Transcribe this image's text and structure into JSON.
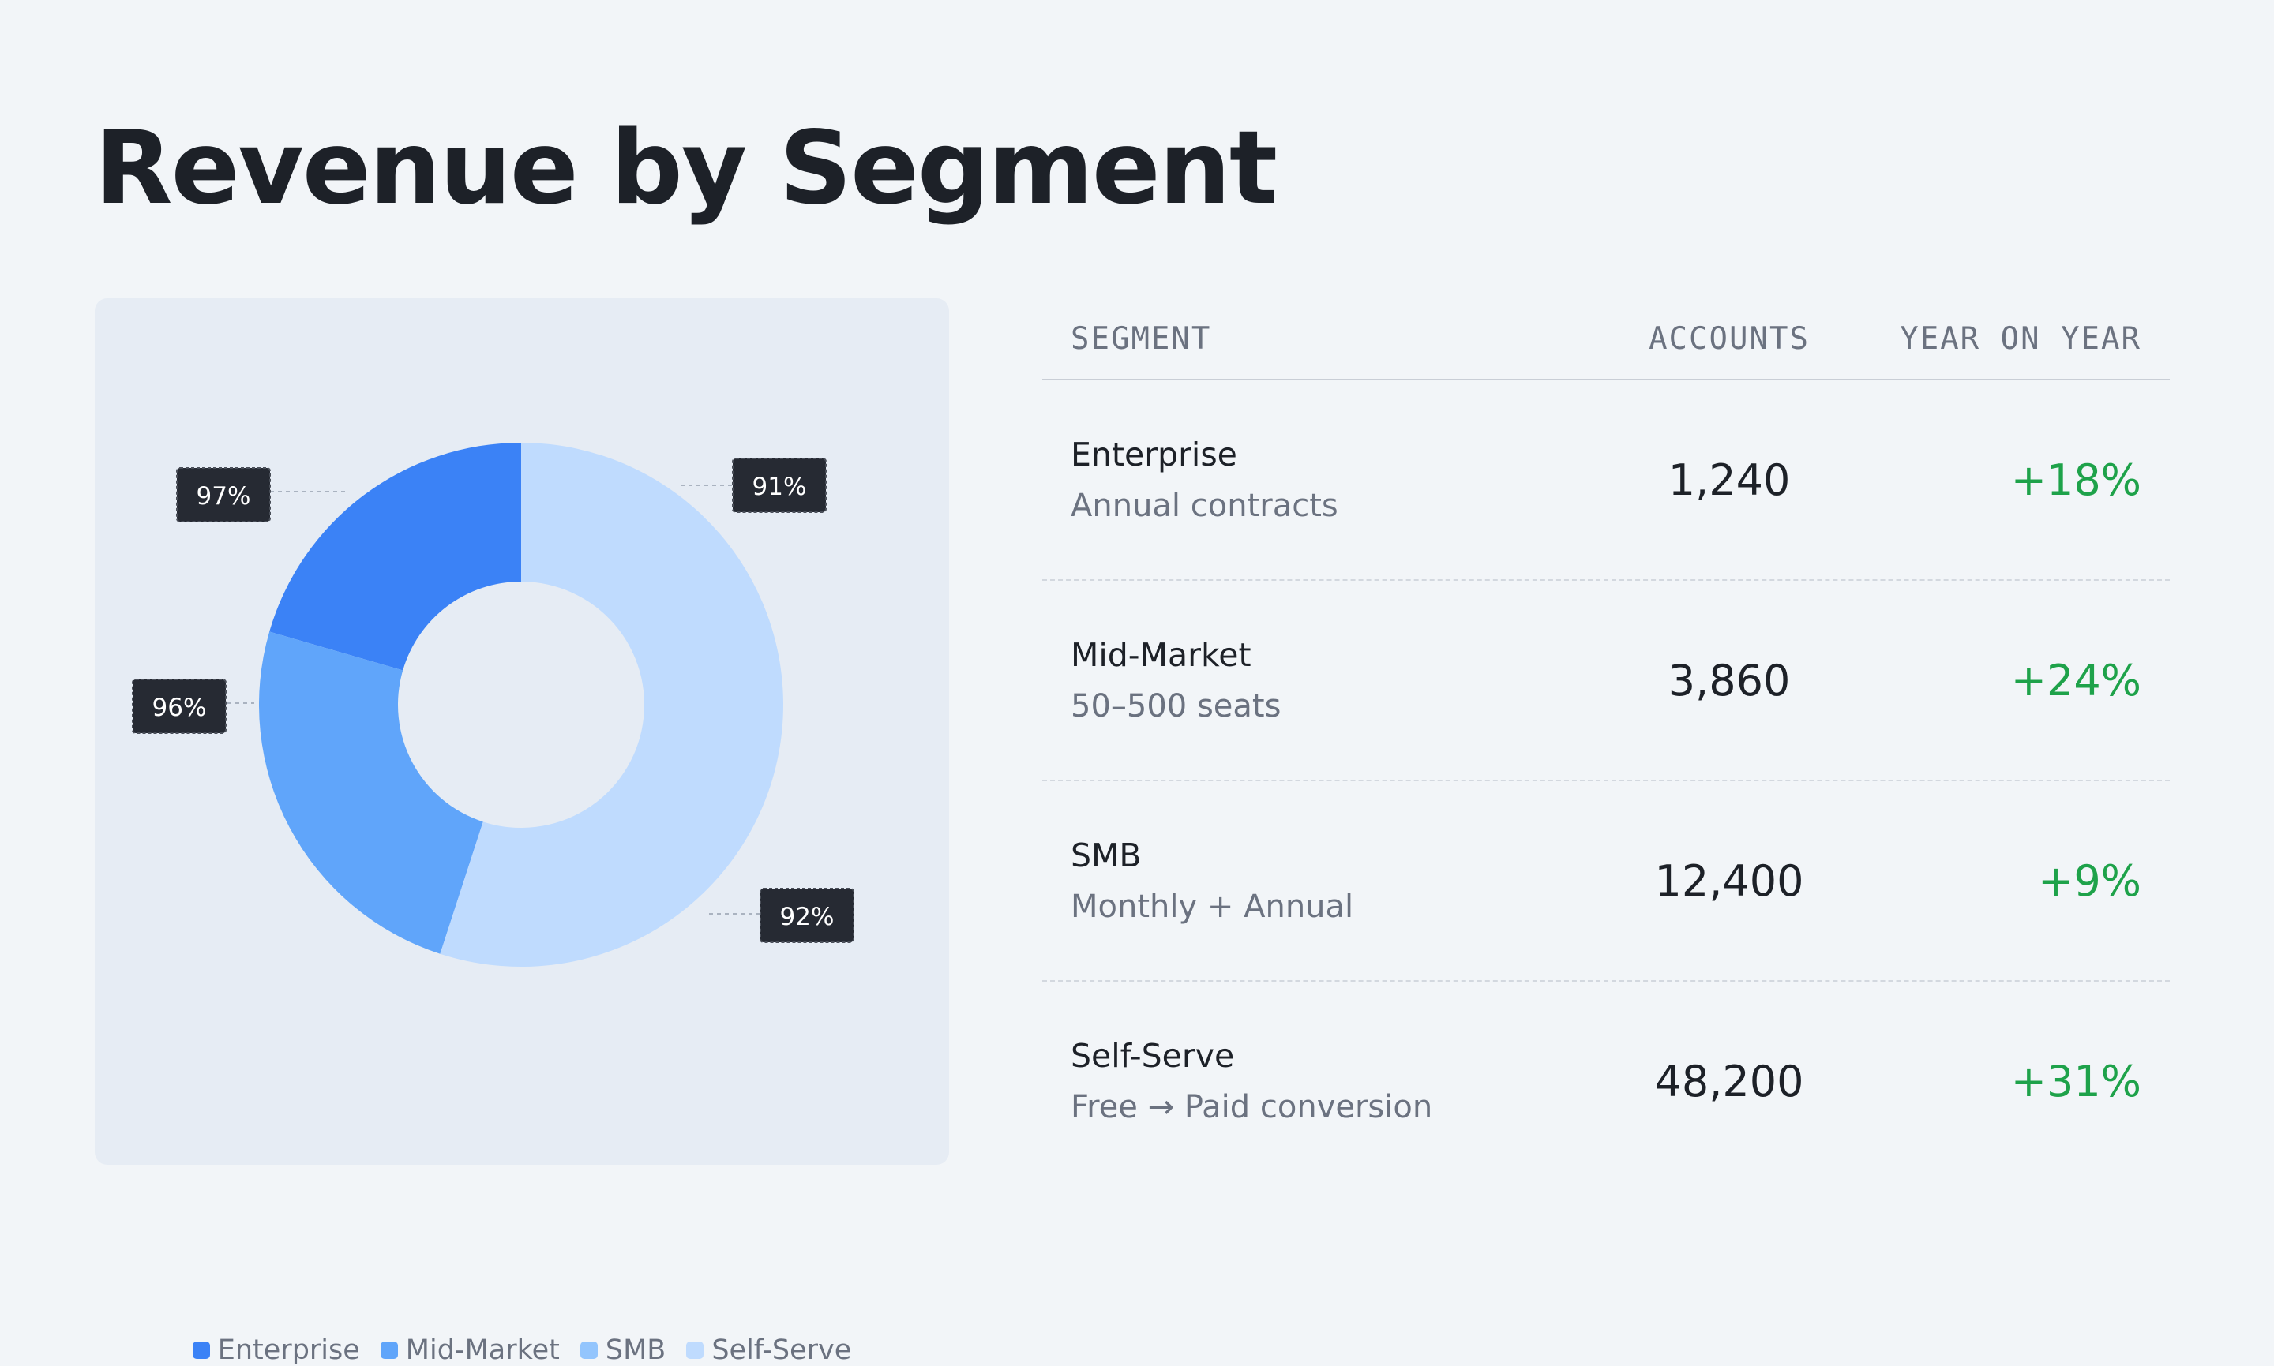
{
  "title": "Revenue by Segment",
  "colors": {
    "enterprise": "#3b82f6",
    "mid_market": "#60a5fa",
    "smb": "#93c5fd",
    "self_serve": "#bfdbfe",
    "positive": "#1ea24a",
    "callout_bg": "#262a33"
  },
  "chart_data": {
    "type": "pie",
    "donut": true,
    "categories": [
      "Enterprise",
      "Mid-Market",
      "SMB",
      "Self-Serve"
    ],
    "values": [
      20.5,
      24.5,
      0,
      55
    ],
    "callouts": [
      "97%",
      "96%",
      "92%",
      "91%"
    ],
    "legend": [
      "Enterprise",
      "Mid-Market",
      "SMB",
      "Self-Serve"
    ],
    "legend_position": "bottom"
  },
  "table": {
    "headers": [
      "SEGMENT",
      "ACCOUNTS",
      "YEAR ON YEAR"
    ],
    "rows": [
      {
        "name": "Enterprise",
        "sub": "Annual contracts",
        "accounts": "1,240",
        "yoy": "+18%"
      },
      {
        "name": "Mid-Market",
        "sub": "50–500 seats",
        "accounts": "3,860",
        "yoy": "+24%"
      },
      {
        "name": "SMB",
        "sub": "Monthly + Annual",
        "accounts": "12,400",
        "yoy": "+9%"
      },
      {
        "name": "Self-Serve",
        "sub": "Free → Paid conversion",
        "accounts": "48,200",
        "yoy": "+31%"
      }
    ]
  }
}
